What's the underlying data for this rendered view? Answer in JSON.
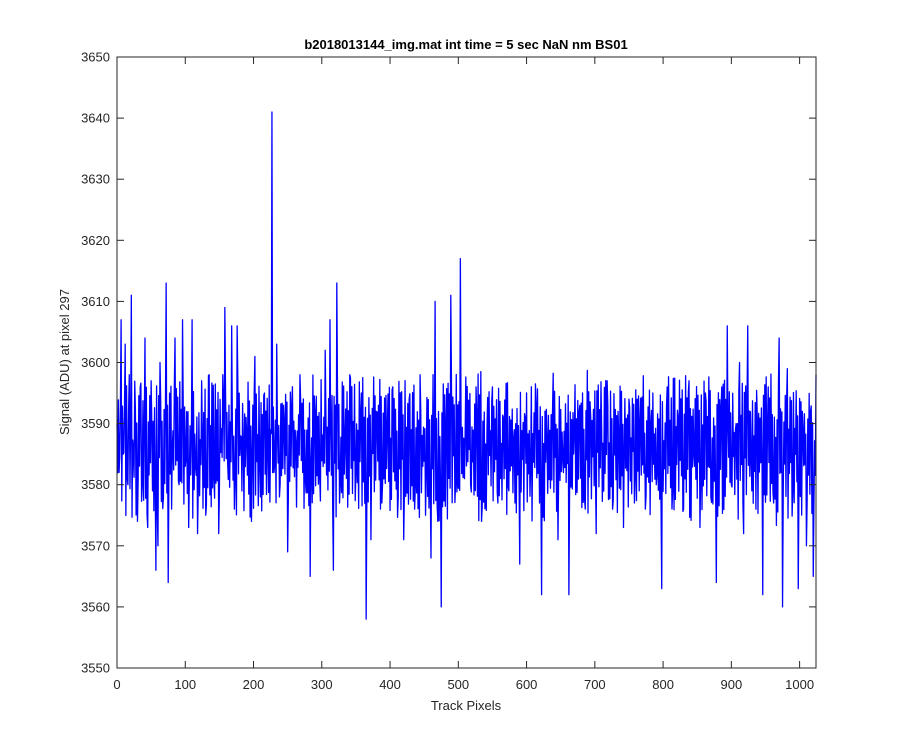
{
  "colors": {
    "line": "#0000ff",
    "axes": "#262626",
    "background": "#ffffff"
  },
  "chart_data": {
    "type": "line",
    "title": "b2018013144_img.mat int time = 5 sec  NaN nm BS01",
    "xlabel": "Track Pixels",
    "ylabel": "Signal (ADU) at pixel 297",
    "xlim": [
      0,
      1024
    ],
    "ylim": [
      3550,
      3650
    ],
    "xticks": [
      0,
      100,
      200,
      300,
      400,
      500,
      600,
      700,
      800,
      900,
      1000
    ],
    "yticks": [
      3550,
      3560,
      3570,
      3580,
      3590,
      3600,
      3610,
      3620,
      3630,
      3640,
      3650
    ],
    "grid": false,
    "legend": "none",
    "noise": {
      "n_points": 1024,
      "mean": 3586,
      "min": 3558,
      "max": 3641
    },
    "series": [
      {
        "color": "#0000ff",
        "points": [
          [
            0,
            3590
          ],
          [
            3,
            3582
          ],
          [
            6,
            3607
          ],
          [
            9,
            3585
          ],
          [
            12,
            3603
          ],
          [
            15,
            3581
          ],
          [
            18,
            3598
          ],
          [
            21,
            3611
          ],
          [
            24,
            3586
          ],
          [
            27,
            3592
          ],
          [
            30,
            3574
          ],
          [
            34,
            3596
          ],
          [
            37,
            3580
          ],
          [
            41,
            3604
          ],
          [
            45,
            3573
          ],
          [
            50,
            3597
          ],
          [
            57,
            3566
          ],
          [
            60,
            3570
          ],
          [
            63,
            3600
          ],
          [
            68,
            3578
          ],
          [
            72,
            3613
          ],
          [
            75,
            3564
          ],
          [
            80,
            3576
          ],
          [
            85,
            3604
          ],
          [
            91,
            3580
          ],
          [
            96,
            3607
          ],
          [
            100,
            3583
          ],
          [
            105,
            3573
          ],
          [
            110,
            3607
          ],
          [
            115,
            3583
          ],
          [
            118,
            3572
          ],
          [
            124,
            3597
          ],
          [
            130,
            3575
          ],
          [
            135,
            3598
          ],
          [
            142,
            3581
          ],
          [
            149,
            3572
          ],
          [
            155,
            3598
          ],
          [
            158,
            3609
          ],
          [
            162,
            3584
          ],
          [
            168,
            3606
          ],
          [
            172,
            3576
          ],
          [
            176,
            3606
          ],
          [
            181,
            3588
          ],
          [
            185,
            3587
          ],
          [
            190,
            3588
          ],
          [
            197,
            3574
          ],
          [
            202,
            3601
          ],
          [
            210,
            3578
          ],
          [
            216,
            3595
          ],
          [
            221,
            3586
          ],
          [
            225,
            3589
          ],
          [
            227,
            3641
          ],
          [
            230,
            3582
          ],
          [
            234,
            3603
          ],
          [
            238,
            3578
          ],
          [
            244,
            3593
          ],
          [
            250,
            3569
          ],
          [
            256,
            3593
          ],
          [
            262,
            3587
          ],
          [
            268,
            3598
          ],
          [
            276,
            3581
          ],
          [
            283,
            3565
          ],
          [
            290,
            3592
          ],
          [
            297,
            3581
          ],
          [
            305,
            3602
          ],
          [
            312,
            3607
          ],
          [
            317,
            3566
          ],
          [
            322,
            3613
          ],
          [
            327,
            3580
          ],
          [
            334,
            3587
          ],
          [
            341,
            3598
          ],
          [
            350,
            3582
          ],
          [
            358,
            3595
          ],
          [
            365,
            3558
          ],
          [
            372,
            3571
          ],
          [
            380,
            3592
          ],
          [
            388,
            3577
          ],
          [
            396,
            3589
          ],
          [
            404,
            3596
          ],
          [
            412,
            3578
          ],
          [
            420,
            3571
          ],
          [
            428,
            3594
          ],
          [
            436,
            3576
          ],
          [
            444,
            3598
          ],
          [
            452,
            3575
          ],
          [
            460,
            3568
          ],
          [
            466,
            3610
          ],
          [
            470,
            3574
          ],
          [
            475,
            3560
          ],
          [
            482,
            3590
          ],
          [
            489,
            3611
          ],
          [
            496,
            3580
          ],
          [
            503,
            3617
          ],
          [
            510,
            3588
          ],
          [
            518,
            3580
          ],
          [
            526,
            3596
          ],
          [
            534,
            3574
          ],
          [
            542,
            3589
          ],
          [
            550,
            3596
          ],
          [
            558,
            3577
          ],
          [
            566,
            3591
          ],
          [
            574,
            3579
          ],
          [
            582,
            3589
          ],
          [
            590,
            3567
          ],
          [
            598,
            3591
          ],
          [
            606,
            3583
          ],
          [
            614,
            3593
          ],
          [
            622,
            3562
          ],
          [
            630,
            3587
          ],
          [
            638,
            3592
          ],
          [
            646,
            3571
          ],
          [
            654,
            3582
          ],
          [
            662,
            3562
          ],
          [
            670,
            3589
          ],
          [
            678,
            3593
          ],
          [
            686,
            3576
          ],
          [
            694,
            3591
          ],
          [
            702,
            3572
          ],
          [
            710,
            3589
          ],
          [
            718,
            3597
          ],
          [
            726,
            3576
          ],
          [
            734,
            3592
          ],
          [
            742,
            3573
          ],
          [
            750,
            3594
          ],
          [
            758,
            3577
          ],
          [
            766,
            3590
          ],
          [
            774,
            3576
          ],
          [
            782,
            3590
          ],
          [
            790,
            3580
          ],
          [
            798,
            3563
          ],
          [
            806,
            3596
          ],
          [
            814,
            3579
          ],
          [
            822,
            3591
          ],
          [
            830,
            3576
          ],
          [
            838,
            3597
          ],
          [
            846,
            3583
          ],
          [
            854,
            3573
          ],
          [
            862,
            3595
          ],
          [
            870,
            3578
          ],
          [
            878,
            3564
          ],
          [
            886,
            3596
          ],
          [
            894,
            3606
          ],
          [
            900,
            3580
          ],
          [
            906,
            3589
          ],
          [
            912,
            3600
          ],
          [
            918,
            3572
          ],
          [
            924,
            3606
          ],
          [
            930,
            3579
          ],
          [
            938,
            3591
          ],
          [
            946,
            3562
          ],
          [
            954,
            3596
          ],
          [
            962,
            3577
          ],
          [
            970,
            3604
          ],
          [
            975,
            3560
          ],
          [
            982,
            3599
          ],
          [
            990,
            3579
          ],
          [
            998,
            3563
          ],
          [
            1004,
            3592
          ],
          [
            1010,
            3570
          ],
          [
            1016,
            3592
          ],
          [
            1020,
            3565
          ],
          [
            1024,
            3598
          ]
        ]
      }
    ]
  }
}
